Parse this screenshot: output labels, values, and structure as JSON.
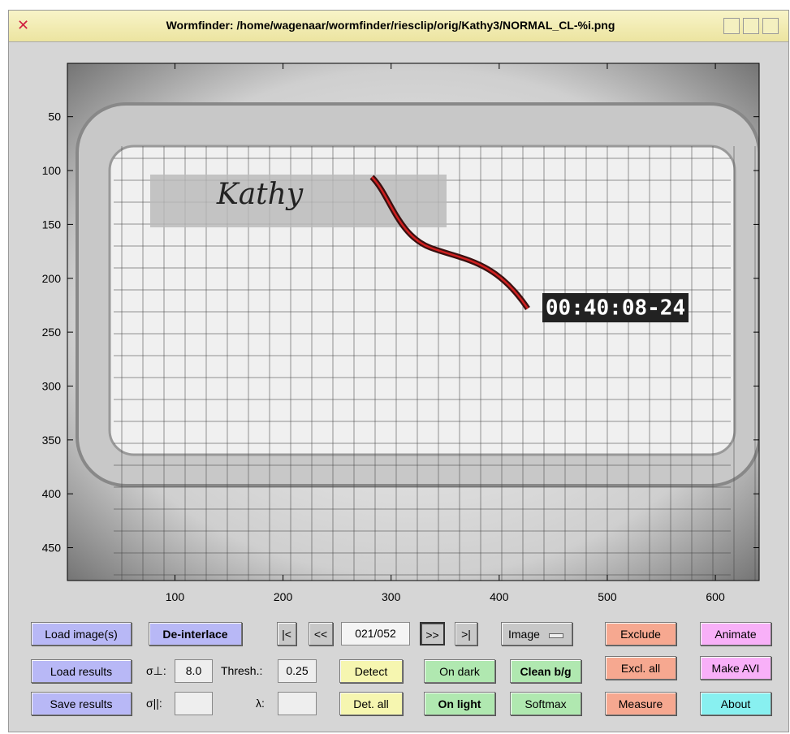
{
  "window": {
    "title": "Wormfinder: /home/wagenaar/wormfinder/riesclip/orig/Kathy3/NORMAL_CL-%i.png"
  },
  "axes": {
    "xlim": [
      0.5,
      640.5
    ],
    "ylim": [
      0.5,
      480.5
    ],
    "xticks": [
      100,
      200,
      300,
      400,
      500,
      600
    ],
    "yticks": [
      50,
      100,
      150,
      200,
      250,
      300,
      350,
      400,
      450
    ],
    "timestamp": "00:40:08-24",
    "handwriting": "Kathy"
  },
  "controls": {
    "load_images": "Load image(s)",
    "deinterlace": "De-interlace",
    "first": "|<",
    "prev": "<<",
    "frame": "021/052",
    "next": ">>",
    "last": ">|",
    "view": "Image",
    "exclude": "Exclude",
    "animate": "Animate",
    "load_results": "Load results",
    "sigma_perp": "σ⊥:",
    "sigma_perp_value": "8.0",
    "thresh": "Thresh.:",
    "thresh_value": "0.25",
    "detect": "Detect",
    "on_dark": "On dark",
    "clean_bg": "Clean b/g",
    "excl_all": "Excl. all",
    "make_avi": "Make AVI",
    "save_results": "Save results",
    "sigma_par": "σ||:",
    "lambda": "λ:",
    "det_all": "Det. all",
    "on_light": "On light",
    "softmax": "Softmax",
    "measure": "Measure",
    "about": "About"
  }
}
